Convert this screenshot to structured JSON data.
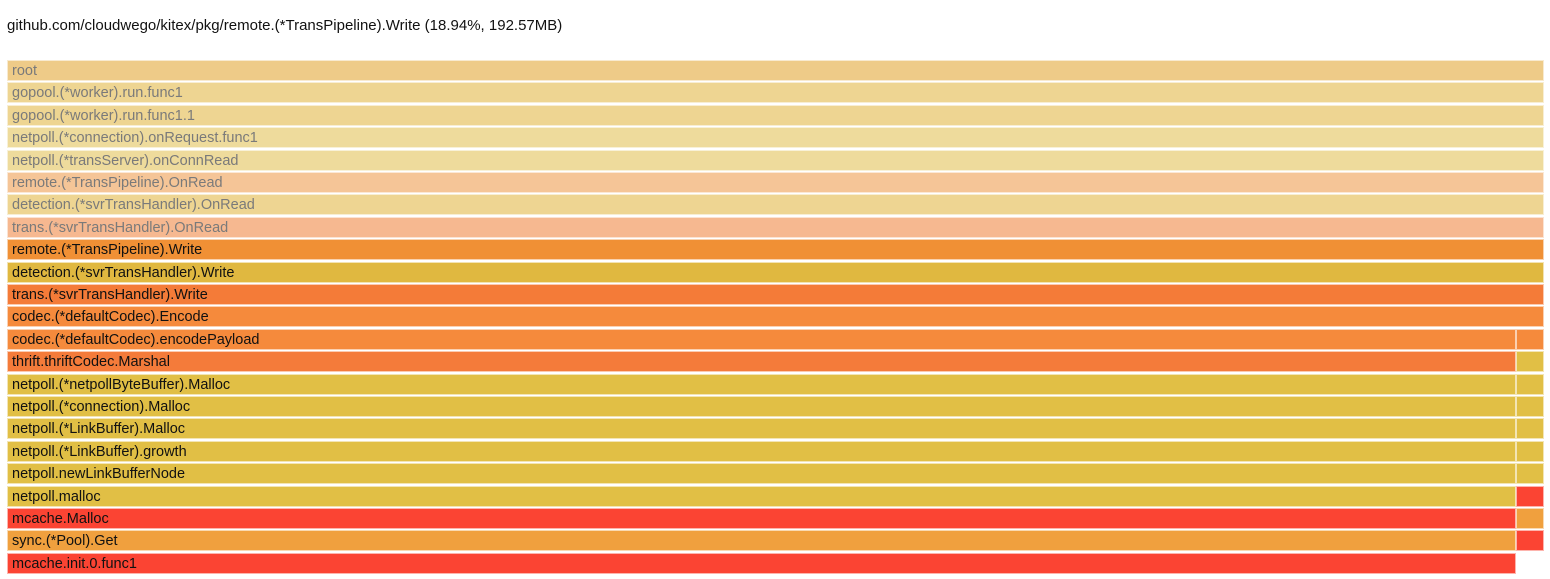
{
  "header": {
    "title": "github.com/cloudwego/kitex/pkg/remote.(*TransPipeline).Write (18.94%, 192.57MB)"
  },
  "flamegraph": {
    "frames": [
      {
        "label": "root",
        "color": "#eecb88",
        "faded": true,
        "right_color": null
      },
      {
        "label": "gopool.(*worker).run.func1",
        "color": "#eed592",
        "faded": true,
        "right_color": null
      },
      {
        "label": "gopool.(*worker).run.func1.1",
        "color": "#eed592",
        "faded": true,
        "right_color": null
      },
      {
        "label": "netpoll.(*connection).onRequest.func1",
        "color": "#eedb9c",
        "faded": true,
        "right_color": null
      },
      {
        "label": "netpoll.(*transServer).onConnRead",
        "color": "#eedb9c",
        "faded": true,
        "right_color": null
      },
      {
        "label": "remote.(*TransPipeline).OnRead",
        "color": "#f5c597",
        "faded": true,
        "right_color": null
      },
      {
        "label": "detection.(*svrTransHandler).OnRead",
        "color": "#eed592",
        "faded": true,
        "right_color": null
      },
      {
        "label": "trans.(*svrTransHandler).OnRead",
        "color": "#f6b890",
        "faded": true,
        "right_color": null
      },
      {
        "label": "remote.(*TransPipeline).Write",
        "color": "#f09035",
        "faded": false,
        "right_color": null
      },
      {
        "label": "detection.(*svrTransHandler).Write",
        "color": "#e0b840",
        "faded": false,
        "right_color": null
      },
      {
        "label": "trans.(*svrTransHandler).Write",
        "color": "#f47b38",
        "faded": false,
        "right_color": null
      },
      {
        "label": "codec.(*defaultCodec).Encode",
        "color": "#f58a3c",
        "faded": false,
        "right_color": null
      },
      {
        "label": "codec.(*defaultCodec).encodePayload",
        "color": "#f58a3c",
        "faded": false,
        "right_color": "#f58a3c"
      },
      {
        "label": "thrift.thriftCodec.Marshal",
        "color": "#f47b3a",
        "faded": false,
        "right_color": "#e1bf45"
      },
      {
        "label": "netpoll.(*netpollByteBuffer).Malloc",
        "color": "#e1bf45",
        "faded": false,
        "right_color": "#e1bf45"
      },
      {
        "label": "netpoll.(*connection).Malloc",
        "color": "#e1bf45",
        "faded": false,
        "right_color": "#e1bf45"
      },
      {
        "label": "netpoll.(*LinkBuffer).Malloc",
        "color": "#e1bf45",
        "faded": false,
        "right_color": "#e1bf45"
      },
      {
        "label": "netpoll.(*LinkBuffer).growth",
        "color": "#e1bf45",
        "faded": false,
        "right_color": "#e1bf45"
      },
      {
        "label": "netpoll.newLinkBufferNode",
        "color": "#e1bf45",
        "faded": false,
        "right_color": "#e1bf45"
      },
      {
        "label": "netpoll.malloc",
        "color": "#e1bf45",
        "faded": false,
        "right_color": "#fb4433"
      },
      {
        "label": "mcache.Malloc",
        "color": "#fb4433",
        "faded": false,
        "right_color": "#f0a03e"
      },
      {
        "label": "sync.(*Pool).Get",
        "color": "#f0a03e",
        "faded": false,
        "right_color": "#fb4433"
      },
      {
        "label": "mcache.init.0.func1",
        "color": "#fb4433",
        "faded": false,
        "right_color": null
      }
    ]
  }
}
